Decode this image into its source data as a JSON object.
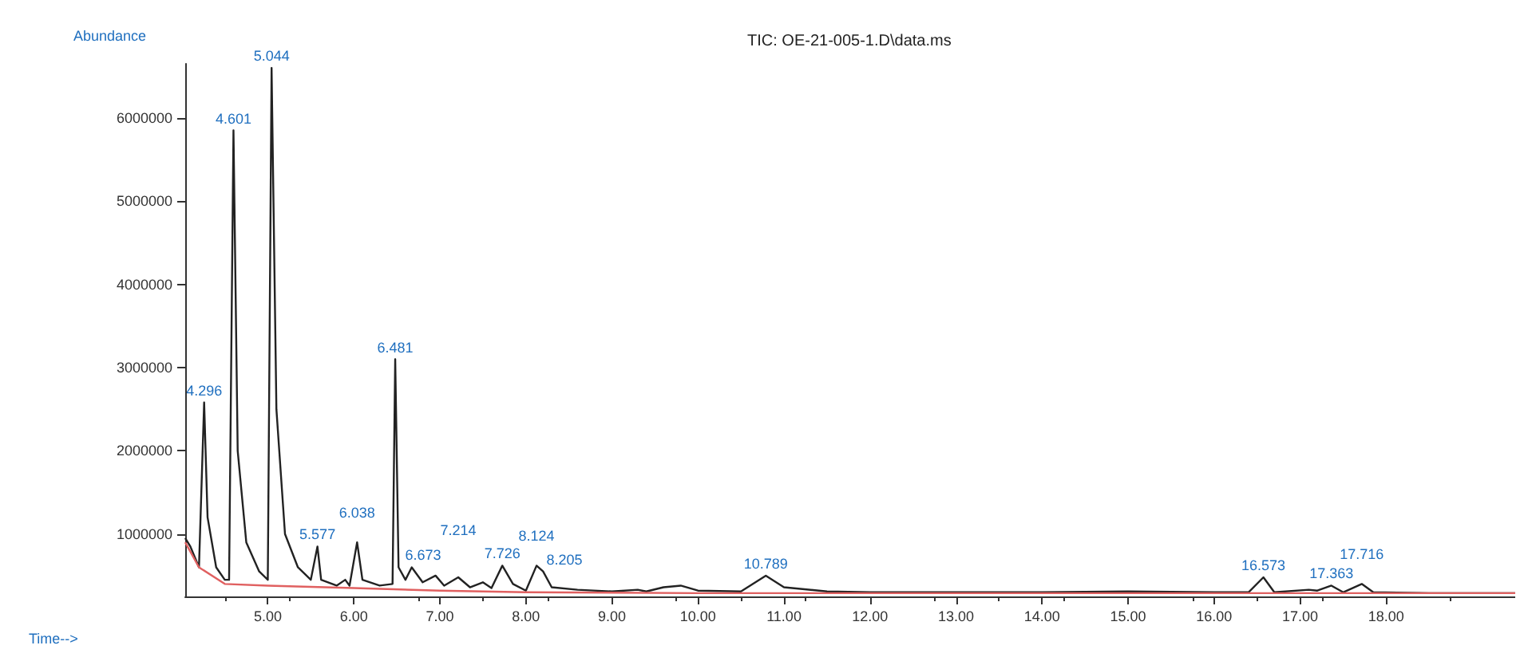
{
  "chart_data": {
    "type": "line",
    "title": "TIC: OE-21-005-1.D\\data.ms",
    "xlabel": "Time-->",
    "ylabel": "Abundance",
    "xlim": [
      4.04,
      19.5
    ],
    "ylim": [
      250000,
      6650000
    ],
    "xticks": [
      {
        "value": 5,
        "label": "5.00"
      },
      {
        "value": 6,
        "label": "6.00"
      },
      {
        "value": 7,
        "label": "7.00"
      },
      {
        "value": 8,
        "label": "8.00"
      },
      {
        "value": 9,
        "label": "9.00"
      },
      {
        "value": 10,
        "label": "10.00"
      },
      {
        "value": 11,
        "label": "11.00"
      },
      {
        "value": 12,
        "label": "12.00"
      },
      {
        "value": 13,
        "label": "13.00"
      },
      {
        "value": 14,
        "label": "14.00"
      },
      {
        "value": 15,
        "label": "15.00"
      },
      {
        "value": 16,
        "label": "16.00"
      },
      {
        "value": 17,
        "label": "17.00"
      },
      {
        "value": 18,
        "label": "18.00"
      }
    ],
    "yticks": [
      1000000,
      2000000,
      3000000,
      4000000,
      5000000,
      6000000
    ],
    "grid": false,
    "marker": "none",
    "line_style": "solid",
    "series": [
      {
        "color": "#222222",
        "x": [
          4.04,
          4.1,
          4.2,
          4.26,
          4.3,
          4.4,
          4.5,
          4.55,
          4.601,
          4.65,
          4.75,
          4.9,
          5.0,
          5.044,
          5.1,
          5.2,
          5.35,
          5.5,
          5.577,
          5.62,
          5.8,
          5.9,
          5.95,
          6.038,
          6.1,
          6.3,
          6.45,
          6.481,
          6.52,
          6.6,
          6.673,
          6.8,
          6.95,
          7.05,
          7.214,
          7.35,
          7.5,
          7.6,
          7.726,
          7.85,
          8.0,
          8.124,
          8.2,
          8.3,
          8.6,
          9.0,
          9.3,
          9.4,
          9.6,
          9.8,
          10.0,
          10.5,
          10.789,
          11.0,
          11.5,
          12.0,
          13.0,
          14.0,
          15.0,
          16.0,
          16.4,
          16.573,
          16.7,
          17.1,
          17.2,
          17.363,
          17.5,
          17.716,
          17.85,
          18.5,
          19.5
        ],
        "values": [
          950000,
          850000,
          600000,
          2580000,
          1200000,
          600000,
          450000,
          450000,
          5850000,
          2000000,
          900000,
          550000,
          450000,
          6600000,
          2500000,
          1000000,
          600000,
          450000,
          850000,
          450000,
          380000,
          450000,
          380000,
          900000,
          450000,
          380000,
          400000,
          3100000,
          600000,
          450000,
          600000,
          420000,
          500000,
          380000,
          480000,
          360000,
          420000,
          350000,
          620000,
          400000,
          320000,
          620000,
          550000,
          360000,
          330000,
          310000,
          330000,
          310000,
          360000,
          380000,
          320000,
          310000,
          500000,
          360000,
          310000,
          300000,
          300000,
          300000,
          310000,
          300000,
          300000,
          480000,
          300000,
          330000,
          320000,
          380000,
          300000,
          400000,
          300000,
          290000,
          290000
        ]
      },
      {
        "color": "#e06060",
        "x": [
          4.04,
          4.2,
          4.5,
          5.0,
          6.0,
          7.0,
          8.0,
          10.0,
          19.5
        ],
        "values": [
          900000,
          600000,
          400000,
          380000,
          350000,
          320000,
          300000,
          290000,
          290000
        ]
      }
    ],
    "annotations": [
      {
        "text": "4.296",
        "x": 4.26,
        "y": 2580000
      },
      {
        "text": "4.601",
        "x": 4.601,
        "y": 5850000
      },
      {
        "text": "5.044",
        "x": 5.044,
        "y": 6600000
      },
      {
        "text": "5.577",
        "x": 5.577,
        "y": 850000
      },
      {
        "text": "6.038",
        "x": 6.038,
        "y": 900000
      },
      {
        "text": "6.481",
        "x": 6.481,
        "y": 3100000
      },
      {
        "text": "6.673",
        "x": 6.673,
        "y": 600000
      },
      {
        "text": "7.214",
        "x": 7.214,
        "y": 480000
      },
      {
        "text": "7.726",
        "x": 7.726,
        "y": 620000
      },
      {
        "text": "8.124",
        "x": 8.124,
        "y": 620000
      },
      {
        "text": "8.205",
        "x": 8.2,
        "y": 550000
      },
      {
        "text": "10.789",
        "x": 10.789,
        "y": 500000
      },
      {
        "text": "16.573",
        "x": 16.573,
        "y": 480000
      },
      {
        "text": "17.363",
        "x": 17.363,
        "y": 380000
      },
      {
        "text": "17.716",
        "x": 17.716,
        "y": 400000
      }
    ]
  }
}
